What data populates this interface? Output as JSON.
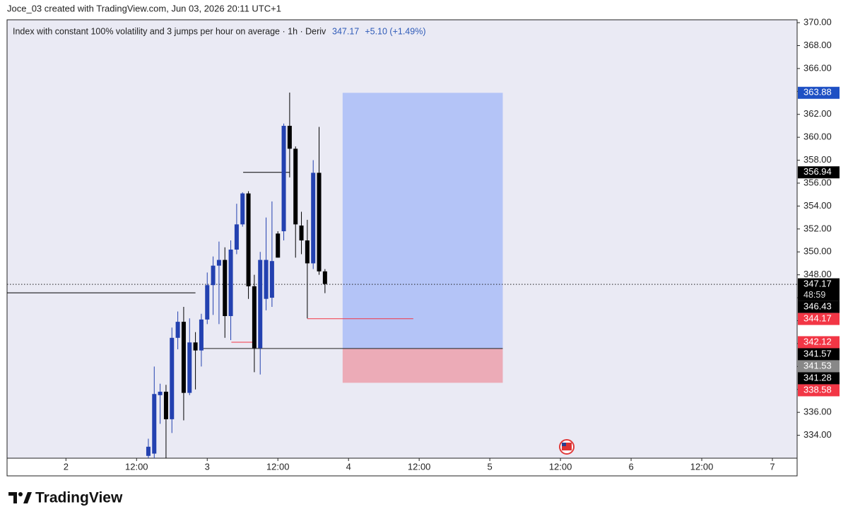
{
  "chart_data": {
    "type": "candlestick",
    "attribution": "Joce_03 created with TradingView.com, Jun 03, 2026 20:11 UTC+1",
    "title": "Index with constant 100% volatility and 3 jumps per hour on average · 1h · Deriv",
    "legend": {
      "last": "347.17",
      "change": "+5.10 (+1.49%)"
    },
    "brand": "TradingView",
    "up_color": "#2341b0",
    "down_color": "#000000",
    "x": [
      14,
      15,
      16,
      17,
      18,
      19,
      20,
      21,
      22,
      23,
      24,
      25,
      26,
      27,
      28,
      29,
      30,
      31,
      32,
      33,
      34,
      35,
      36,
      37,
      38,
      39,
      40,
      41,
      42,
      43,
      44
    ],
    "open": [
      332.2,
      332.4,
      337.5,
      337.8,
      335.4,
      342.5,
      343.9,
      337.7,
      342.1,
      341.4,
      344.1,
      347.1,
      348.8,
      349.3,
      344.4,
      350.2,
      352.4,
      355.1,
      347.0,
      341.6,
      345.9,
      346.0,
      351.6,
      351.8,
      361.0,
      359.0,
      352.3,
      351.0,
      349.0,
      356.9,
      348.3
    ],
    "high": [
      333.7,
      340.0,
      338.5,
      338.4,
      343.4,
      344.8,
      345.2,
      344.2,
      343.0,
      344.6,
      348.2,
      349.6,
      350.9,
      350.4,
      351.0,
      354.2,
      355.2,
      355.3,
      348.0,
      350.0,
      353.0,
      354.4,
      351.8,
      361.2,
      363.9,
      359.2,
      353.5,
      352.8,
      358.0,
      360.9,
      348.5
    ],
    "low": [
      332.0,
      332.0,
      335.0,
      332.0,
      334.2,
      341.5,
      335.3,
      337.5,
      338.0,
      340.0,
      343.7,
      344.5,
      343.7,
      342.5,
      342.3,
      349.8,
      352.2,
      345.9,
      339.5,
      339.3,
      344.9,
      345.2,
      349.5,
      351.0,
      356.5,
      349.5,
      349.8,
      344.2,
      348.5,
      348.0,
      346.4
    ],
    "close": [
      333.0,
      337.6,
      337.8,
      335.4,
      342.5,
      343.9,
      337.7,
      342.1,
      341.4,
      344.1,
      347.1,
      348.8,
      349.3,
      344.4,
      350.2,
      352.4,
      355.1,
      347.0,
      341.6,
      349.3,
      349.3,
      349.2,
      349.5,
      361.0,
      359.0,
      352.4,
      351.0,
      349.0,
      356.9,
      348.3,
      347.2
    ],
    "xlim": [
      -10,
      124.2
    ],
    "ylim": [
      332,
      370.25
    ],
    "xticks": [
      {
        "value": 0,
        "label": "2"
      },
      {
        "value": 12,
        "label": "12:00"
      },
      {
        "value": 24,
        "label": "3"
      },
      {
        "value": 36,
        "label": "12:00"
      },
      {
        "value": 48,
        "label": "4"
      },
      {
        "value": 60,
        "label": "12:00"
      },
      {
        "value": 72,
        "label": "5"
      },
      {
        "value": 84,
        "label": "12:00"
      },
      {
        "value": 96,
        "label": "6"
      },
      {
        "value": 108,
        "label": "12:00"
      },
      {
        "value": 120,
        "label": "7"
      }
    ],
    "yticks": [
      {
        "value": 334,
        "label": "334.00"
      },
      {
        "value": 336,
        "label": "336.00"
      },
      {
        "value": 338,
        "label": "338.00"
      },
      {
        "value": 340,
        "label": "340.00"
      },
      {
        "value": 342,
        "label": "342.00"
      },
      {
        "value": 344,
        "label": "344.00"
      },
      {
        "value": 346,
        "label": "346.00"
      },
      {
        "value": 348,
        "label": "348.00"
      },
      {
        "value": 350,
        "label": "350.00"
      },
      {
        "value": 352,
        "label": "352.00"
      },
      {
        "value": 354,
        "label": "354.00"
      },
      {
        "value": 356,
        "label": "356.00"
      },
      {
        "value": 358,
        "label": "358.00"
      },
      {
        "value": 360,
        "label": "360.00"
      },
      {
        "value": 362,
        "label": "362.00"
      },
      {
        "value": 364,
        "label": "364.00"
      },
      {
        "value": 366,
        "label": "366.00"
      },
      {
        "value": 368,
        "label": "368.00"
      },
      {
        "value": 370,
        "label": "370.00"
      }
    ],
    "position": {
      "from": 47,
      "to": 74.2,
      "target": 363.88,
      "entry": 341.57,
      "stop": 338.58,
      "target_color": "#1e50c4",
      "entry_color": "#000000",
      "stop_color": "#f23645"
    },
    "levels": [
      {
        "value": 356.94,
        "color": "#000000",
        "from": 30.1,
        "to": 38.0
      },
      {
        "value": 347.17,
        "color": "#000000",
        "dotted": true,
        "countdown": "48:59"
      },
      {
        "value": 346.43,
        "color": "#000000",
        "from": -10,
        "to": 22.0
      },
      {
        "value": 344.17,
        "color": "#f23645",
        "from": 41.0,
        "to": 59.0
      },
      {
        "value": 342.12,
        "color": "#f23645",
        "from": 28.1,
        "to": 32.0
      },
      {
        "value": 341.53,
        "color": "#888888"
      },
      {
        "value": 341.28,
        "color": "#000000"
      }
    ]
  }
}
